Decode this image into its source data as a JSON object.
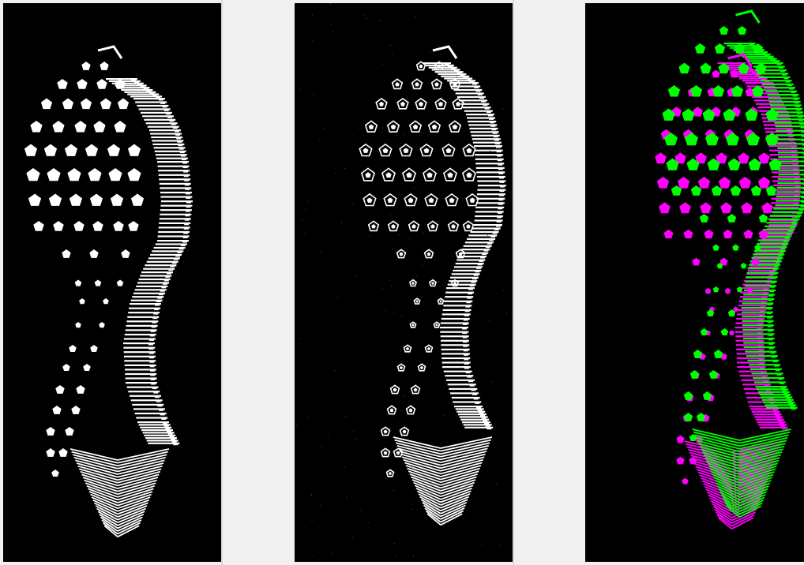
{
  "images": [
    {
      "name": "shoe-print-reference",
      "colors": [
        "#ffffff"
      ]
    },
    {
      "name": "shoe-print-query",
      "colors": [
        "#ffffff"
      ]
    },
    {
      "name": "shoe-print-overlay",
      "colors": [
        "#00ff00",
        "#ff00ff",
        "#ffffff"
      ]
    }
  ],
  "colors": {
    "background": "#f0f0f0",
    "panel": "#000000",
    "divider": "#d8d8d8",
    "print": "#ffffff",
    "overlay_a": "#00ff00",
    "overlay_b": "#ff00ff"
  }
}
